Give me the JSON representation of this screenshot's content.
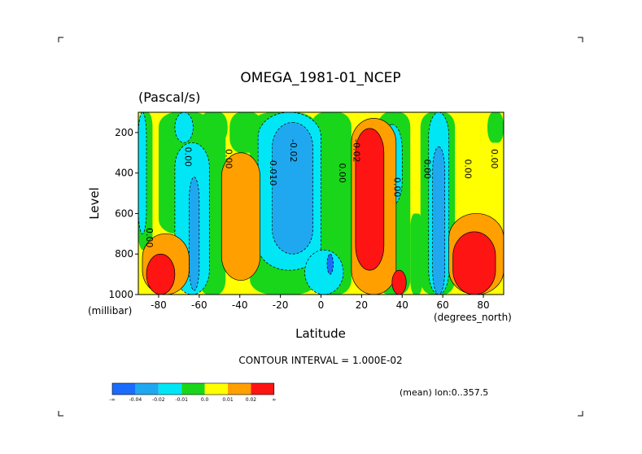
{
  "chart_data": {
    "type": "heatmap",
    "title": "OMEGA_1981-01_NCEP",
    "units": "(Pascal/s)",
    "xlabel": "Latitude",
    "x_units": "(degrees_north)",
    "ylabel": "Level",
    "y_units": "(millibar)",
    "xlim": [
      -90,
      90
    ],
    "ylim": [
      1000,
      100
    ],
    "x_ticks": [
      -80,
      -60,
      -40,
      -20,
      0,
      20,
      40,
      60,
      80
    ],
    "x_tick_labels": [
      "-80",
      "-60",
      "-40",
      "-20",
      "0",
      "20",
      "40",
      "60",
      "80"
    ],
    "y_ticks": [
      200,
      400,
      600,
      800,
      1000
    ],
    "y_tick_labels": [
      "200",
      "400",
      "600",
      "800",
      "1000"
    ],
    "contour_interval_text": "CONTOUR INTERVAL = 1.000E-02",
    "footer_text": "(mean) lon:0..357.5",
    "colorbar": {
      "colors": [
        "#1c6bff",
        "#1fa8f0",
        "#00e6f5",
        "#19d61a",
        "#ffff00",
        "#ffa000",
        "#ff1414"
      ],
      "labels": [
        "-∞",
        "-0.04",
        "-0.02",
        "-0.01",
        "0.0",
        "0.01",
        "0.02",
        "∞"
      ]
    },
    "contour_labels": [
      {
        "text": "0.00",
        "lat": -86,
        "level": 720
      },
      {
        "text": "0.00",
        "lat": -67,
        "level": 320
      },
      {
        "text": "0.00",
        "lat": -47,
        "level": 330
      },
      {
        "text": "0.010",
        "lat": -25,
        "level": 400
      },
      {
        "text": "-0.02",
        "lat": -15,
        "level": 290
      },
      {
        "text": "0.00",
        "lat": 9,
        "level": 400
      },
      {
        "text": "-0.02",
        "lat": 16,
        "level": 290
      },
      {
        "text": "0.00",
        "lat": 36,
        "level": 470
      },
      {
        "text": "0.00",
        "lat": 51,
        "level": 380
      },
      {
        "text": "0.00",
        "lat": 71,
        "level": 380
      },
      {
        "text": "0.00",
        "lat": 84,
        "level": 330
      }
    ],
    "regions": [
      {
        "label": "0.0",
        "lat": [
          -90,
          90
        ],
        "level": [
          100,
          1000
        ]
      },
      {
        "label": "-0.01",
        "lat": [
          -72,
          -63
        ],
        "level": [
          100,
          250
        ]
      },
      {
        "label": "-0.01",
        "lat": [
          -72,
          -55
        ],
        "level": [
          250,
          1000
        ]
      },
      {
        "label": "-0.01",
        "lat": [
          -31,
          0
        ],
        "level": [
          100,
          880
        ]
      },
      {
        "label": "-0.01",
        "lat": [
          -8,
          11
        ],
        "level": [
          780,
          1000
        ]
      },
      {
        "label": "-0.01",
        "lat": [
          30,
          40
        ],
        "level": [
          160,
          560
        ]
      },
      {
        "label": "-0.01",
        "lat": [
          53,
          63
        ],
        "level": [
          100,
          1000
        ]
      },
      {
        "label": "-0.01",
        "lat": [
          -90,
          -86
        ],
        "level": [
          100,
          700
        ]
      },
      {
        "label": "-0.02",
        "lat": [
          -65,
          -60
        ],
        "level": [
          420,
          980
        ]
      },
      {
        "label": "-0.02",
        "lat": [
          -24,
          -4
        ],
        "level": [
          150,
          800
        ]
      },
      {
        "label": "-0.02",
        "lat": [
          55,
          61
        ],
        "level": [
          270,
          1000
        ]
      },
      {
        "label": "-0.04",
        "lat": [
          3,
          6
        ],
        "level": [
          800,
          900
        ]
      },
      {
        "label": "0.01",
        "lat": [
          -49,
          -30
        ],
        "level": [
          300,
          930
        ]
      },
      {
        "label": "0.01",
        "lat": [
          -88,
          -65
        ],
        "level": [
          700,
          1000
        ]
      },
      {
        "label": "0.01",
        "lat": [
          15,
          37
        ],
        "level": [
          130,
          1000
        ]
      },
      {
        "label": "0.01",
        "lat": [
          63,
          90
        ],
        "level": [
          600,
          1000
        ]
      },
      {
        "label": "0.02",
        "lat": [
          -86,
          -72
        ],
        "level": [
          800,
          1000
        ]
      },
      {
        "label": "0.02",
        "lat": [
          17,
          31
        ],
        "level": [
          180,
          880
        ]
      },
      {
        "label": "0.02",
        "lat": [
          35,
          42
        ],
        "level": [
          880,
          1000
        ]
      },
      {
        "label": "0.02",
        "lat": [
          65,
          86
        ],
        "level": [
          690,
          1000
        ]
      }
    ]
  }
}
